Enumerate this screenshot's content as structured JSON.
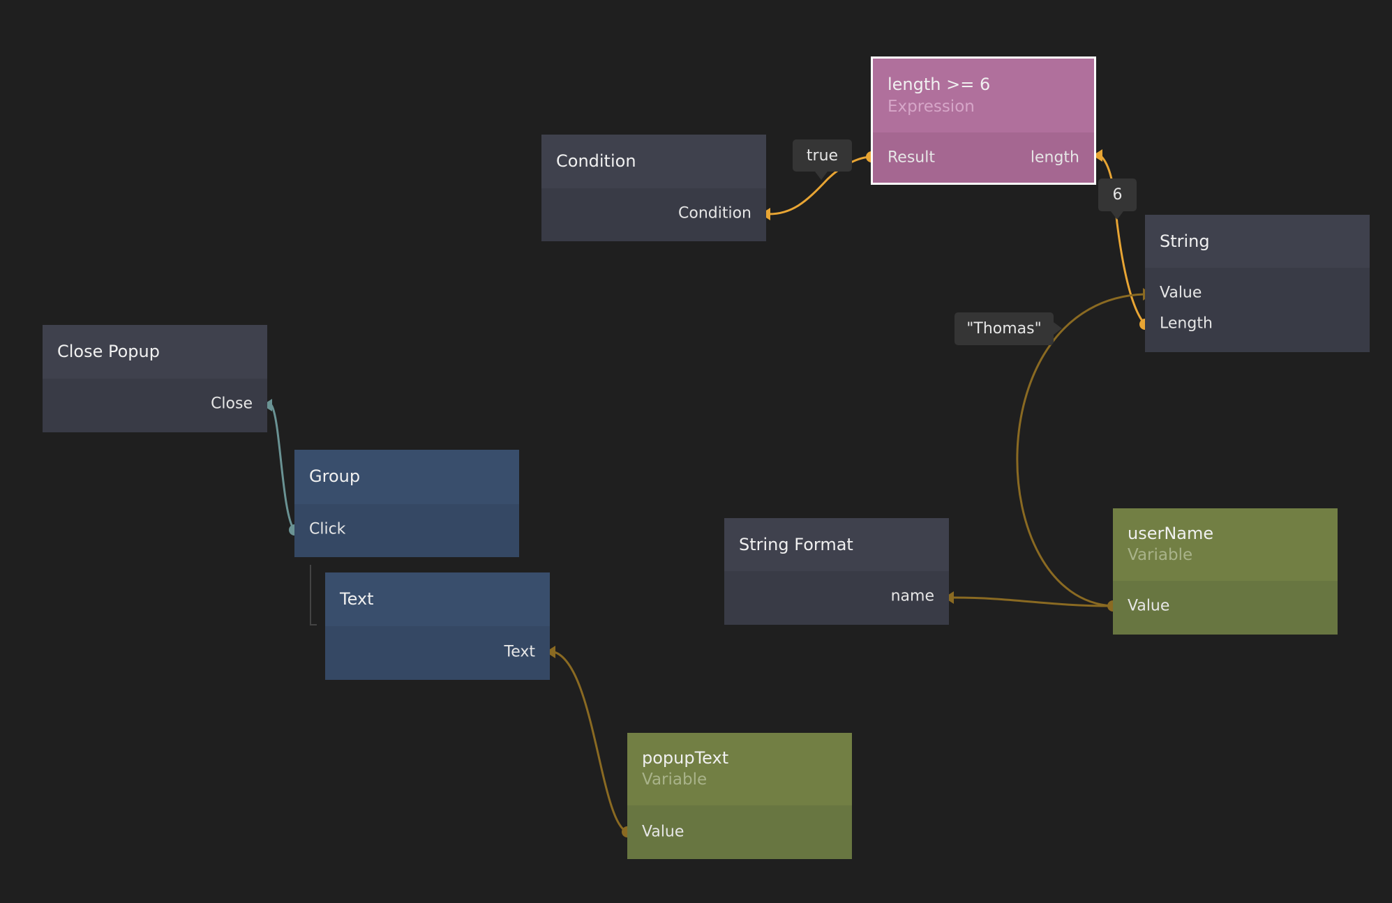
{
  "nodes": {
    "condition": {
      "title": "Condition",
      "ports": [
        "Condition"
      ]
    },
    "expression": {
      "title": "length >= 6",
      "subtitle": "Expression",
      "ports": [
        "Result",
        "length"
      ],
      "selected": true
    },
    "string": {
      "title": "String",
      "ports": [
        "Value",
        "Length"
      ]
    },
    "close_popup": {
      "title": "Close Popup",
      "ports": [
        "Close"
      ]
    },
    "group": {
      "title": "Group",
      "ports": [
        "Click"
      ]
    },
    "text": {
      "title": "Text",
      "ports": [
        "Text"
      ]
    },
    "string_format": {
      "title": "String Format",
      "ports": [
        "name"
      ]
    },
    "username": {
      "title": "userName",
      "subtitle": "Variable",
      "ports": [
        "Value"
      ]
    },
    "popuptext": {
      "title": "popupText",
      "subtitle": "Variable",
      "ports": [
        "Value"
      ]
    }
  },
  "value_labels": {
    "result_value": "true",
    "length_value": "6",
    "username_value": "\"Thomas\""
  },
  "colors": {
    "background": "#1f1f1f",
    "signal_wire": "#e8a534",
    "data_wire": "#8a6a22",
    "event_wire": "#6a9394",
    "selection": "#ffffff"
  }
}
